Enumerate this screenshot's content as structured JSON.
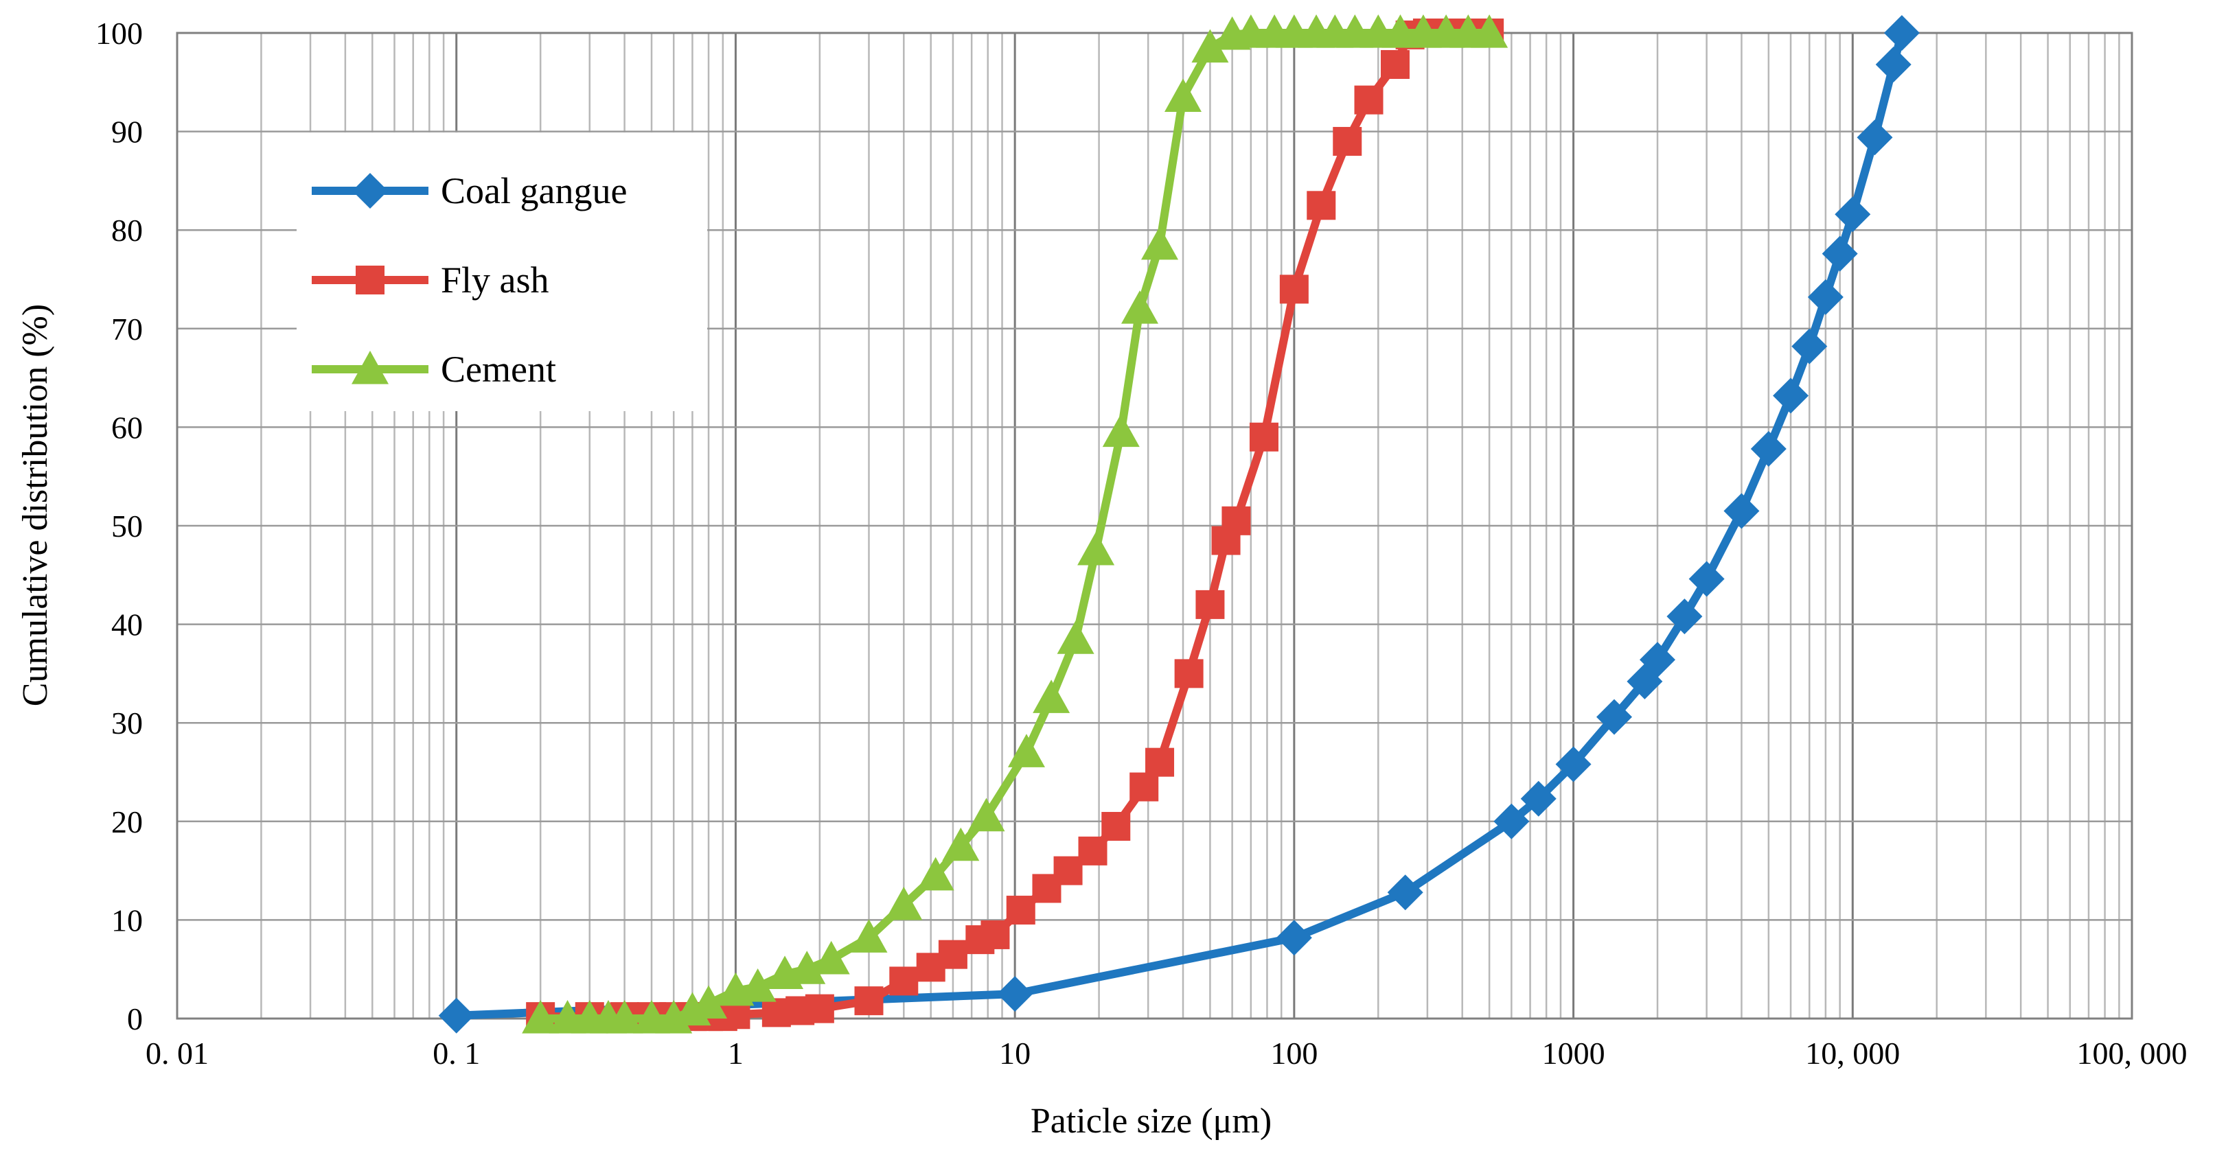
{
  "chart_data": {
    "type": "line",
    "xscale": "log",
    "xlim": [
      0.01,
      100000
    ],
    "ylim": [
      0,
      100
    ],
    "grid": true,
    "legend_position": "top-left",
    "xlabel": "Paticle size (μm)",
    "ylabel": "Cumulative distribution (%)",
    "x_tick_labels": [
      "0. 01",
      "0. 1",
      "1",
      "10",
      "100",
      "1000",
      "10, 000",
      "100, 000"
    ],
    "y_tick_labels": [
      "0",
      "10",
      "20",
      "30",
      "40",
      "50",
      "60",
      "70",
      "80",
      "90",
      "100"
    ],
    "series": [
      {
        "name": "Coal gangue",
        "color": "#1f77c0",
        "marker": "diamond",
        "x": [
          0.1,
          10,
          100,
          250,
          600,
          750,
          1000,
          1400,
          1800,
          2000,
          2500,
          3000,
          4000,
          5000,
          6000,
          7000,
          8000,
          9000,
          10000,
          12000,
          14000,
          15000
        ],
        "y": [
          0.3,
          2.5,
          8.2,
          12.8,
          20,
          22.3,
          25.8,
          30.6,
          34.2,
          36.4,
          40.8,
          44.6,
          51.5,
          57.8,
          63.2,
          68.2,
          73.2,
          77.6,
          81.6,
          89.4,
          96.8,
          100
        ]
      },
      {
        "name": "Fly ash",
        "color": "#e0443c",
        "marker": "square",
        "x": [
          0.2,
          0.3,
          0.4,
          0.5,
          0.6,
          0.7,
          0.8,
          0.9,
          1.0,
          1.4,
          1.7,
          2.0,
          3.0,
          4.0,
          5.0,
          6.0,
          7.5,
          8.5,
          10.5,
          13,
          15.5,
          19,
          23,
          29,
          33,
          42,
          50,
          57,
          62,
          78,
          100,
          125,
          155,
          185,
          230,
          260,
          300,
          350,
          400,
          450,
          500
        ],
        "y": [
          0.2,
          0.2,
          0.2,
          0.2,
          0.2,
          0.2,
          0.2,
          0.2,
          0.4,
          0.6,
          0.8,
          1.0,
          1.8,
          3.8,
          5.2,
          6.5,
          8.0,
          8.5,
          11.0,
          13.2,
          15.0,
          17.0,
          19.5,
          23.5,
          26.0,
          35.0,
          42.0,
          48.5,
          50.5,
          59.0,
          74.0,
          82.5,
          89.0,
          93.2,
          96.8,
          99.8,
          100,
          100,
          100,
          100,
          100
        ]
      },
      {
        "name": "Cement",
        "color": "#8cc63e",
        "marker": "triangle",
        "x": [
          0.2,
          0.25,
          0.3,
          0.35,
          0.4,
          0.5,
          0.6,
          0.7,
          0.8,
          1.0,
          1.2,
          1.5,
          1.8,
          2.2,
          3.0,
          4.0,
          5.2,
          6.4,
          7.9,
          11,
          13.5,
          16.5,
          19.5,
          24,
          28,
          33,
          40,
          50,
          60,
          70,
          85,
          100,
          120,
          140,
          165,
          200,
          240,
          290,
          350,
          420,
          500
        ],
        "y": [
          0,
          0,
          0,
          0,
          0,
          0,
          0,
          0.8,
          1.5,
          2.8,
          3.2,
          4.5,
          5.0,
          6.0,
          8.2,
          11.5,
          14.5,
          17.5,
          20.5,
          27.0,
          32.5,
          38.5,
          47.5,
          59.5,
          72.0,
          78.5,
          93.5,
          98.5,
          99.8,
          100,
          100,
          100,
          100,
          100,
          100,
          100,
          100,
          100,
          100,
          100,
          100
        ]
      }
    ]
  }
}
